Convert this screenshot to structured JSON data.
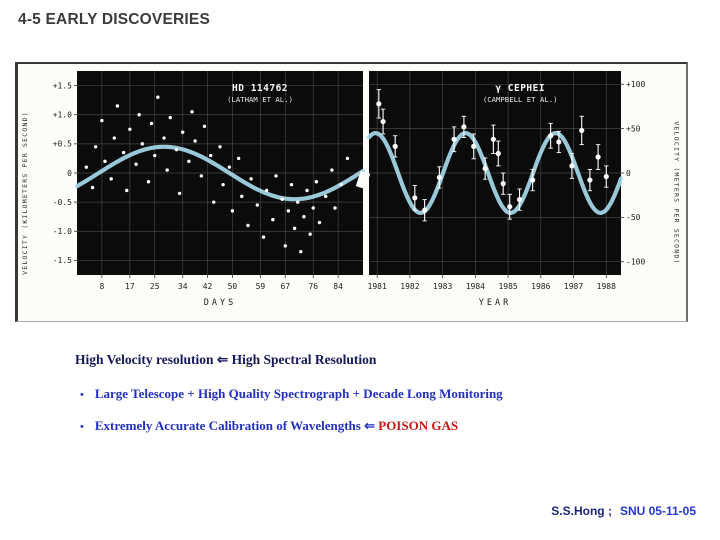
{
  "slide": {
    "title": "4-5 EARLY DISCOVERIES",
    "body": {
      "bullet_char": "•",
      "heading": "High Velocity resolution ⇐ High Spectral Resolution",
      "bullets": [
        {
          "text": "Large Telescope + High Quality Spectrograph + Decade Long Monitoring",
          "highlight": ""
        },
        {
          "text": "Extremely Accurate Calibration of Wavelengths ⇐ ",
          "highlight": "POISON GAS"
        }
      ]
    },
    "footer": {
      "author": "S.S.Hong ;",
      "note": "SNU 05-11-05"
    }
  },
  "colors": {
    "title_text": "#3b3b3b",
    "heading_text": "#17175c",
    "bullet_text": "#2230c0",
    "highlight_text": "#cc1414",
    "footer_author": "#1b2680",
    "footer_note": "#2636d0"
  },
  "chart_data": [
    {
      "type": "scatter",
      "title": "HD 114762",
      "source": "(LATHAM ET AL.)",
      "title_x": 0.64,
      "xlabel": "DAYS",
      "ylabel": "VELOCITY (KILOMETERS PER SECOND)",
      "y_axis_side": "left",
      "xlim": [
        0,
        92
      ],
      "ylim": [
        -1.75,
        1.75
      ],
      "x_ticks": [
        8,
        17,
        25,
        34,
        42,
        50,
        59,
        67,
        76,
        84
      ],
      "y_ticks": [
        {
          "v": 1.5,
          "l": "+1.5"
        },
        {
          "v": 1.0,
          "l": "+1.0"
        },
        {
          "v": 0.5,
          "l": "+0.5"
        },
        {
          "v": 0,
          "l": "0"
        },
        {
          "v": -0.5,
          "l": "-0.5"
        },
        {
          "v": -1.0,
          "l": "-1.0"
        },
        {
          "v": -1.5,
          "l": "-1.5"
        }
      ],
      "grid": true,
      "bg": "#0b0b0b",
      "curve_color": "#a6d9ec",
      "point_color": "#ffffff",
      "error_bars": false,
      "fit_curve": {
        "shape": "sine",
        "amplitude": 0.45,
        "period": 84,
        "x_zero_ascending": 7,
        "offset": 0
      },
      "points": [
        [
          3,
          0.1
        ],
        [
          5,
          -0.25
        ],
        [
          6,
          0.45
        ],
        [
          8,
          0.9
        ],
        [
          9,
          0.2
        ],
        [
          11,
          -0.1
        ],
        [
          12,
          0.6
        ],
        [
          13,
          1.15
        ],
        [
          15,
          0.35
        ],
        [
          16,
          -0.3
        ],
        [
          17,
          0.75
        ],
        [
          19,
          0.15
        ],
        [
          20,
          1.0
        ],
        [
          21,
          0.5
        ],
        [
          23,
          -0.15
        ],
        [
          24,
          0.85
        ],
        [
          25,
          0.3
        ],
        [
          26,
          1.3
        ],
        [
          28,
          0.6
        ],
        [
          29,
          0.05
        ],
        [
          30,
          0.95
        ],
        [
          32,
          0.4
        ],
        [
          33,
          -0.35
        ],
        [
          34,
          0.7
        ],
        [
          36,
          0.2
        ],
        [
          37,
          1.05
        ],
        [
          38,
          0.55
        ],
        [
          40,
          -0.05
        ],
        [
          41,
          0.8
        ],
        [
          43,
          0.3
        ],
        [
          44,
          -0.5
        ],
        [
          46,
          0.45
        ],
        [
          47,
          -0.2
        ],
        [
          49,
          0.1
        ],
        [
          50,
          -0.65
        ],
        [
          52,
          0.25
        ],
        [
          53,
          -0.4
        ],
        [
          55,
          -0.9
        ],
        [
          56,
          -0.1
        ],
        [
          58,
          -0.55
        ],
        [
          60,
          -1.1
        ],
        [
          61,
          -0.3
        ],
        [
          63,
          -0.8
        ],
        [
          64,
          -0.05
        ],
        [
          66,
          -0.45
        ],
        [
          67,
          -1.25
        ],
        [
          68,
          -0.65
        ],
        [
          69,
          -0.2
        ],
        [
          70,
          -0.95
        ],
        [
          71,
          -0.5
        ],
        [
          72,
          -1.35
        ],
        [
          73,
          -0.75
        ],
        [
          74,
          -0.3
        ],
        [
          75,
          -1.05
        ],
        [
          76,
          -0.6
        ],
        [
          77,
          -0.15
        ],
        [
          78,
          -0.85
        ],
        [
          80,
          -0.4
        ],
        [
          82,
          0.05
        ],
        [
          83,
          -0.6
        ],
        [
          85,
          -0.2
        ],
        [
          87,
          0.25
        ]
      ]
    },
    {
      "type": "scatter",
      "title": "γ CEPHEI",
      "source": "(CAMPBELL ET AL.)",
      "title_x": 0.6,
      "xlabel": "YEAR",
      "ylabel": "VELOCITY (METERS PER SECOND)",
      "y_axis_side": "right",
      "xlim": [
        1980.75,
        1988.45
      ],
      "ylim": [
        -115,
        115
      ],
      "x_ticks": [
        1981,
        1982,
        1983,
        1984,
        1985,
        1986,
        1987,
        1988
      ],
      "y_ticks": [
        {
          "v": 100,
          "l": "+100"
        },
        {
          "v": 50,
          "l": "+50"
        },
        {
          "v": 0,
          "l": "0"
        },
        {
          "v": -50,
          "l": "-50"
        },
        {
          "v": -100,
          "l": "-100"
        }
      ],
      "grid": true,
      "bg": "#0b0b0b",
      "curve_color": "#a6d9ec",
      "point_color": "#ffffff",
      "error_bars": true,
      "fit_curve": {
        "shape": "sine",
        "amplitude": 45,
        "period": 2.75,
        "x_zero_ascending": 1983.0125,
        "offset": 0
      },
      "points": [
        [
          1981.05,
          78,
          16
        ],
        [
          1981.18,
          58,
          14
        ],
        [
          1981.55,
          30,
          12
        ],
        [
          1982.15,
          -28,
          14
        ],
        [
          1982.45,
          -42,
          12
        ],
        [
          1982.9,
          -5,
          12
        ],
        [
          1983.35,
          38,
          14
        ],
        [
          1983.65,
          52,
          12
        ],
        [
          1983.95,
          30,
          14
        ],
        [
          1984.3,
          5,
          12
        ],
        [
          1984.55,
          38,
          16
        ],
        [
          1984.7,
          22,
          14
        ],
        [
          1984.85,
          -12,
          12
        ],
        [
          1985.05,
          -38,
          14
        ],
        [
          1985.35,
          -30,
          12
        ],
        [
          1985.75,
          -8,
          12
        ],
        [
          1986.3,
          42,
          14
        ],
        [
          1986.55,
          35,
          12
        ],
        [
          1986.95,
          8,
          14
        ],
        [
          1987.25,
          48,
          16
        ],
        [
          1987.5,
          -8,
          12
        ],
        [
          1987.75,
          18,
          14
        ],
        [
          1988.0,
          -4,
          12
        ]
      ]
    }
  ]
}
